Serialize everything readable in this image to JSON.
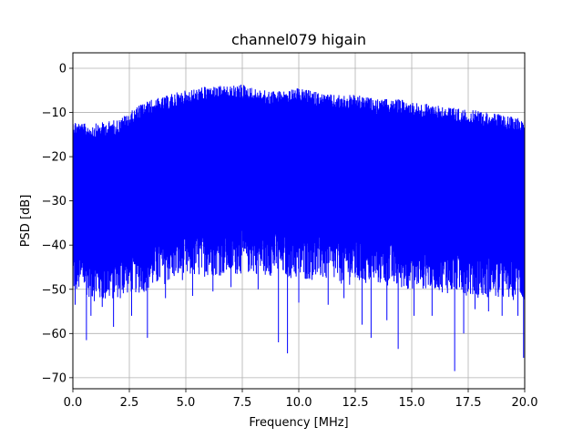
{
  "chart_data": {
    "type": "line",
    "title": "channel079 higain",
    "xlabel": "Frequency [MHz]",
    "ylabel": "PSD [dB]",
    "xlim": [
      0,
      20
    ],
    "ylim": [
      -72.5,
      3.5
    ],
    "xticks": [
      "0.0",
      "2.5",
      "5.0",
      "7.5",
      "10.0",
      "12.5",
      "15.0",
      "17.5",
      "20.0"
    ],
    "xtick_values": [
      0,
      2.5,
      5,
      7.5,
      10,
      12.5,
      15,
      17.5,
      20
    ],
    "yticks": [
      "0",
      "−10",
      "−20",
      "−30",
      "−40",
      "−50",
      "−60",
      "−70"
    ],
    "ytick_values": [
      0,
      -10,
      -20,
      -30,
      -40,
      -50,
      -60,
      -70
    ],
    "grid": true,
    "line_color": "#0000ff",
    "series": [
      {
        "upper_envelope": {
          "x": [
            0,
            0.5,
            1,
            1.5,
            2,
            2.5,
            3,
            3.5,
            4,
            4.5,
            5,
            5.5,
            6,
            6.5,
            7,
            7.5,
            8,
            8.5,
            9,
            9.5,
            10,
            10.5,
            11,
            11.5,
            12,
            12.5,
            13,
            13.5,
            14,
            14.5,
            15,
            15.5,
            16,
            16.5,
            17,
            17.5,
            18,
            18.5,
            19,
            19.5,
            20
          ],
          "y": [
            -11.5,
            -12.5,
            -12.5,
            -12,
            -11.5,
            -10,
            -8,
            -7,
            -6.5,
            -5.5,
            -5,
            -4.5,
            -4,
            -4,
            -4,
            -3.5,
            -4.5,
            -5,
            -5,
            -5,
            -4.5,
            -5,
            -5.5,
            -6,
            -6,
            -6,
            -6.5,
            -7,
            -7,
            -7,
            -7.5,
            -8,
            -8,
            -8.5,
            -9,
            -9.5,
            -9.5,
            -10,
            -10.5,
            -11,
            -11
          ]
        },
        "lower_envelope": {
          "x": [
            0,
            0.5,
            1,
            1.5,
            2,
            2.5,
            3,
            3.5,
            4,
            4.5,
            5,
            5.5,
            6,
            6.5,
            7,
            7.5,
            8,
            8.5,
            9,
            9.5,
            10,
            10.5,
            11,
            11.5,
            12,
            12.5,
            13,
            13.5,
            14,
            14.5,
            15,
            15.5,
            16,
            16.5,
            17,
            17.5,
            18,
            18.5,
            19,
            19.5,
            20
          ],
          "y": [
            -48,
            -48,
            -50,
            -50,
            -49,
            -48,
            -48,
            -47,
            -46,
            -45,
            -45,
            -44.5,
            -44,
            -44,
            -44,
            -43.5,
            -43.5,
            -44,
            -44,
            -44.5,
            -45,
            -45,
            -45,
            -45.5,
            -46,
            -46,
            -46,
            -46,
            -46.5,
            -47,
            -47,
            -47,
            -47,
            -48,
            -48,
            -48.5,
            -49,
            -49,
            -49.5,
            -49.5,
            -50
          ]
        },
        "deep_nulls": [
          {
            "x": 0.1,
            "y": -53.5
          },
          {
            "x": 0.6,
            "y": -61.5
          },
          {
            "x": 0.8,
            "y": -56
          },
          {
            "x": 1.3,
            "y": -54
          },
          {
            "x": 1.8,
            "y": -58.5
          },
          {
            "x": 2.1,
            "y": -52
          },
          {
            "x": 2.6,
            "y": -56
          },
          {
            "x": 3.3,
            "y": -61
          },
          {
            "x": 4.1,
            "y": -52
          },
          {
            "x": 5.3,
            "y": -51.5
          },
          {
            "x": 6.2,
            "y": -50.5
          },
          {
            "x": 7.0,
            "y": -49.5
          },
          {
            "x": 8.2,
            "y": -50
          },
          {
            "x": 9.1,
            "y": -62
          },
          {
            "x": 9.5,
            "y": -64.5
          },
          {
            "x": 10.0,
            "y": -53
          },
          {
            "x": 11.3,
            "y": -53.5
          },
          {
            "x": 12.0,
            "y": -52
          },
          {
            "x": 12.8,
            "y": -58
          },
          {
            "x": 13.2,
            "y": -61
          },
          {
            "x": 13.9,
            "y": -57
          },
          {
            "x": 14.4,
            "y": -63.5
          },
          {
            "x": 15.1,
            "y": -56
          },
          {
            "x": 15.9,
            "y": -56
          },
          {
            "x": 16.9,
            "y": -68.5
          },
          {
            "x": 17.3,
            "y": -60
          },
          {
            "x": 17.8,
            "y": -54.5
          },
          {
            "x": 18.4,
            "y": -55
          },
          {
            "x": 19.0,
            "y": -56
          },
          {
            "x": 19.7,
            "y": -56
          },
          {
            "x": 19.95,
            "y": -65.5
          }
        ]
      }
    ]
  }
}
